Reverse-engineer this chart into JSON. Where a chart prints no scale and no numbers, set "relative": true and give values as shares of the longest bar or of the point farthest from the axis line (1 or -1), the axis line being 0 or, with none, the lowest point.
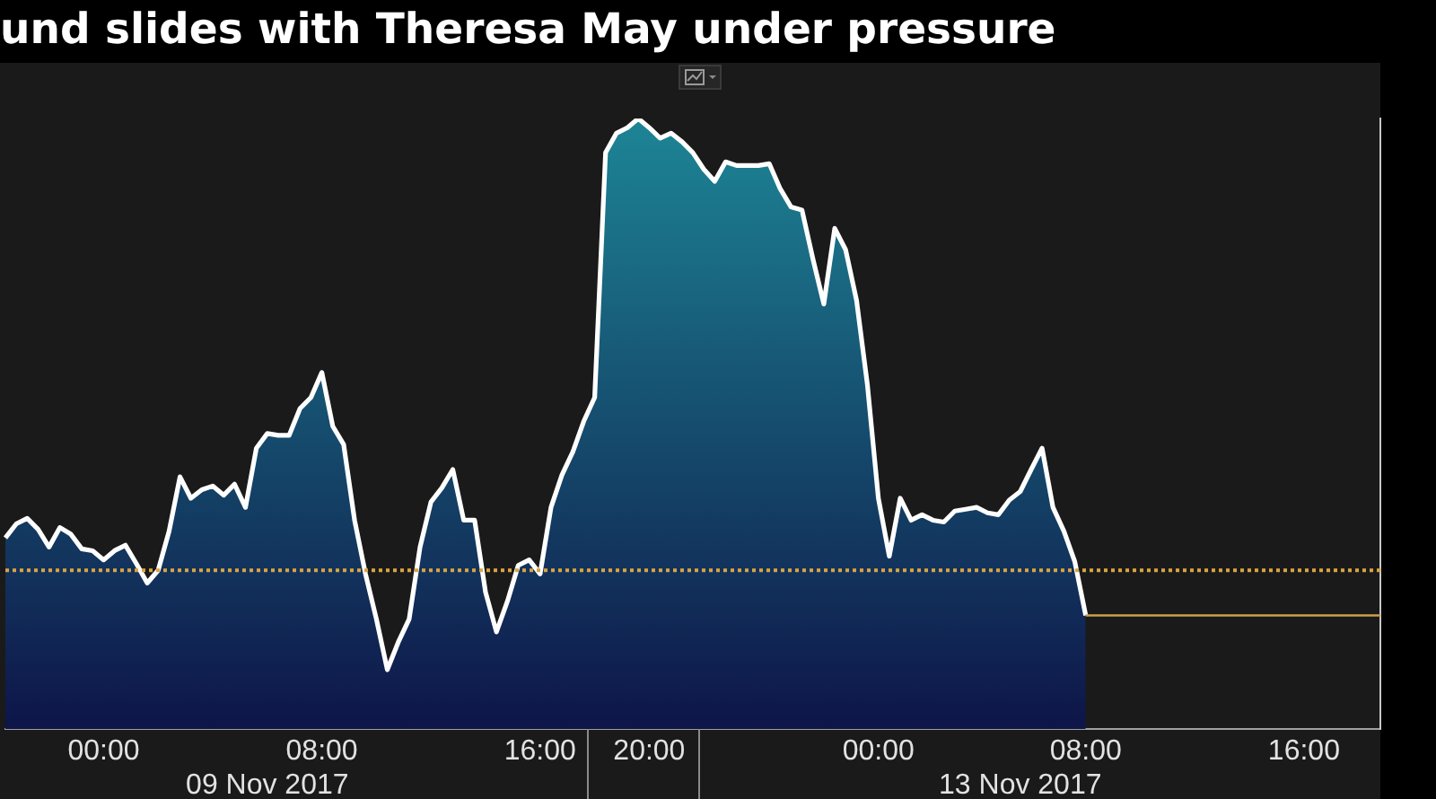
{
  "chart_data": {
    "type": "area",
    "title": "und slides with Theresa May under pressure",
    "relative": true,
    "categories": [
      null,
      null,
      null,
      null,
      null,
      null,
      null,
      null,
      null,
      "00:00",
      null,
      null,
      null,
      null,
      null,
      null,
      null,
      null,
      null,
      null,
      null,
      null,
      null,
      null,
      "\n09 Nov 2017",
      null,
      null,
      null,
      null,
      "08:00",
      null,
      null,
      null,
      null,
      null,
      null,
      null,
      null,
      null,
      null,
      null,
      null,
      null,
      null,
      null,
      null,
      null,
      null,
      null,
      "16:00",
      null,
      null,
      null,
      null,
      null,
      null,
      null,
      null,
      null,
      "20:00",
      null,
      null,
      null,
      null,
      null,
      null,
      null,
      null,
      null,
      null,
      null,
      null,
      null,
      null,
      null,
      null,
      null,
      null,
      null,
      null,
      "00:00",
      null,
      null,
      null,
      null,
      null,
      null,
      null,
      null,
      null,
      null,
      null,
      null,
      "\n13 Nov 2017",
      null,
      null,
      null,
      null,
      null,
      "08:00",
      null,
      null,
      null,
      null,
      null,
      null,
      null,
      null,
      null,
      null,
      null,
      null,
      null,
      null,
      null,
      null,
      null,
      null,
      null,
      "16:00",
      null,
      null,
      null,
      null,
      null,
      null,
      null
    ],
    "color": "#1d8595",
    "values": [
      0.313,
      0.336,
      0.345,
      0.327,
      0.298,
      0.33,
      0.319,
      0.295,
      0.292,
      0.277,
      0.292,
      0.301,
      0.271,
      0.239,
      0.26,
      0.324,
      0.413,
      0.378,
      0.392,
      0.398,
      0.383,
      0.401,
      0.363,
      0.46,
      0.484,
      0.481,
      0.481,
      0.525,
      0.543,
      0.584,
      0.496,
      0.466,
      0.342,
      0.254,
      0.18,
      0.097,
      0.142,
      0.18,
      0.298,
      0.372,
      0.395,
      0.425,
      0.342,
      0.342,
      0.224,
      0.159,
      0.209,
      0.268,
      0.277,
      0.254,
      0.363,
      0.416,
      0.454,
      0.504,
      0.543,
      0.944,
      0.976,
      0.985,
      1,
      0.985,
      0.968,
      0.976,
      0.962,
      0.944,
      0.917,
      0.897,
      0.929,
      0.923,
      0.923,
      0.923,
      0.926,
      0.885,
      0.855,
      0.85,
      0.77,
      0.696,
      0.82,
      0.785,
      0.702,
      0.563,
      0.378,
      0.283,
      0.378,
      0.342,
      0.351,
      0.342,
      0.339,
      0.357,
      0.36,
      0.363,
      0.354,
      0.351,
      0.375,
      0.389,
      0.425,
      0.46,
      0.363,
      0.324,
      0.274,
      0.186,
      null,
      null,
      null,
      null,
      null,
      null,
      null,
      null,
      null,
      null,
      null,
      null,
      null,
      null,
      null,
      null,
      null,
      null,
      null,
      null,
      null,
      null,
      null,
      null,
      null,
      null,
      null
    ],
    "ref_lines": [
      {
        "axis": "y",
        "value": 0.26,
        "color": "#d9a441",
        "line_style": "dotted"
      },
      {
        "axis": "y",
        "value": 0.186,
        "color": "#c9a24a",
        "line_style": "solid"
      }
    ]
  }
}
